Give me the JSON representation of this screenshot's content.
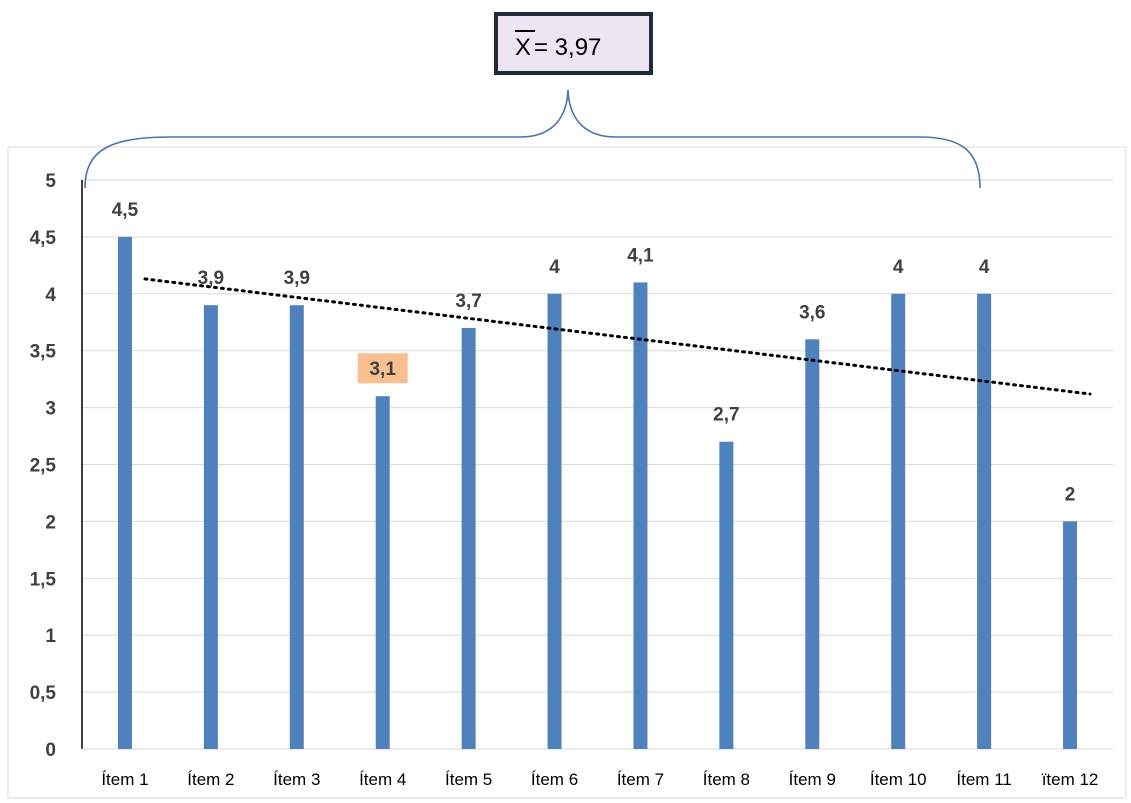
{
  "mean_box": {
    "symbol": "X",
    "text": "= 3,97"
  },
  "colors": {
    "bar": "#4f81bd",
    "grid": "#d9d9d9",
    "brace": "#4a74ad",
    "trend": "#000000",
    "highlight_label_bg": "#f9c08f",
    "mean_box_bg": "#ebe5f4",
    "mean_box_border": "#1f2b3a"
  },
  "chart_data": {
    "type": "bar",
    "categories": [
      "Ítem 1",
      "Ítem 2",
      "Ítem 3",
      "Ítem 4",
      "Ítem 5",
      "Ítem 6",
      "Ítem 7",
      "Ítem 8",
      "Ítem 9",
      "Ítem 10",
      "Ítem 11",
      "ïtem 12"
    ],
    "values": [
      4.5,
      3.9,
      3.9,
      3.1,
      3.7,
      4,
      4.1,
      2.7,
      3.6,
      4,
      4,
      2
    ],
    "data_labels": [
      "4,5",
      "3,9",
      "3,9",
      "3,1",
      "3,7",
      "4",
      "4,1",
      "2,7",
      "3,6",
      "4",
      "4",
      "2"
    ],
    "highlighted_category": "Ítem 4",
    "ylim": [
      0,
      5
    ],
    "y_ticks": [
      0,
      0.5,
      1,
      1.5,
      2,
      2.5,
      3,
      3.5,
      4,
      4.5,
      5
    ],
    "y_tick_labels": [
      "0",
      "0,5",
      "1",
      "1,5",
      "2",
      "2,5",
      "3",
      "3,5",
      "4",
      "4,5",
      "5"
    ],
    "grid": true,
    "trendline": {
      "type": "linear",
      "style": "dotted"
    },
    "title": "",
    "xlabel": "",
    "ylabel": ""
  }
}
